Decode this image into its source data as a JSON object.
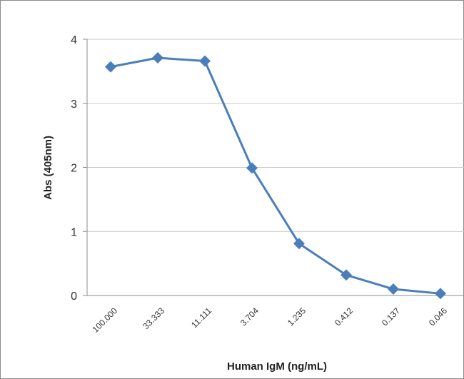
{
  "chart_data": {
    "type": "line",
    "title": "",
    "xlabel": "Human IgM (ng/mL)",
    "ylabel": "Abs (405nm)",
    "categories": [
      "100.000",
      "33.333",
      "11.111",
      "3.704",
      "1.235",
      "0.412",
      "0.137",
      "0.046"
    ],
    "series": [
      {
        "values": [
          3.57,
          3.71,
          3.66,
          1.99,
          0.81,
          0.32,
          0.1,
          0.03
        ]
      }
    ],
    "ylim": [
      0,
      4
    ],
    "yticks": [
      "0",
      "1",
      "2",
      "3",
      "4"
    ],
    "grid": true,
    "legend": "none",
    "marker": "diamond",
    "colors": {
      "series": "#4a7ebb",
      "grid": "#c8c8c8",
      "frame": "#8c8c8c"
    }
  }
}
